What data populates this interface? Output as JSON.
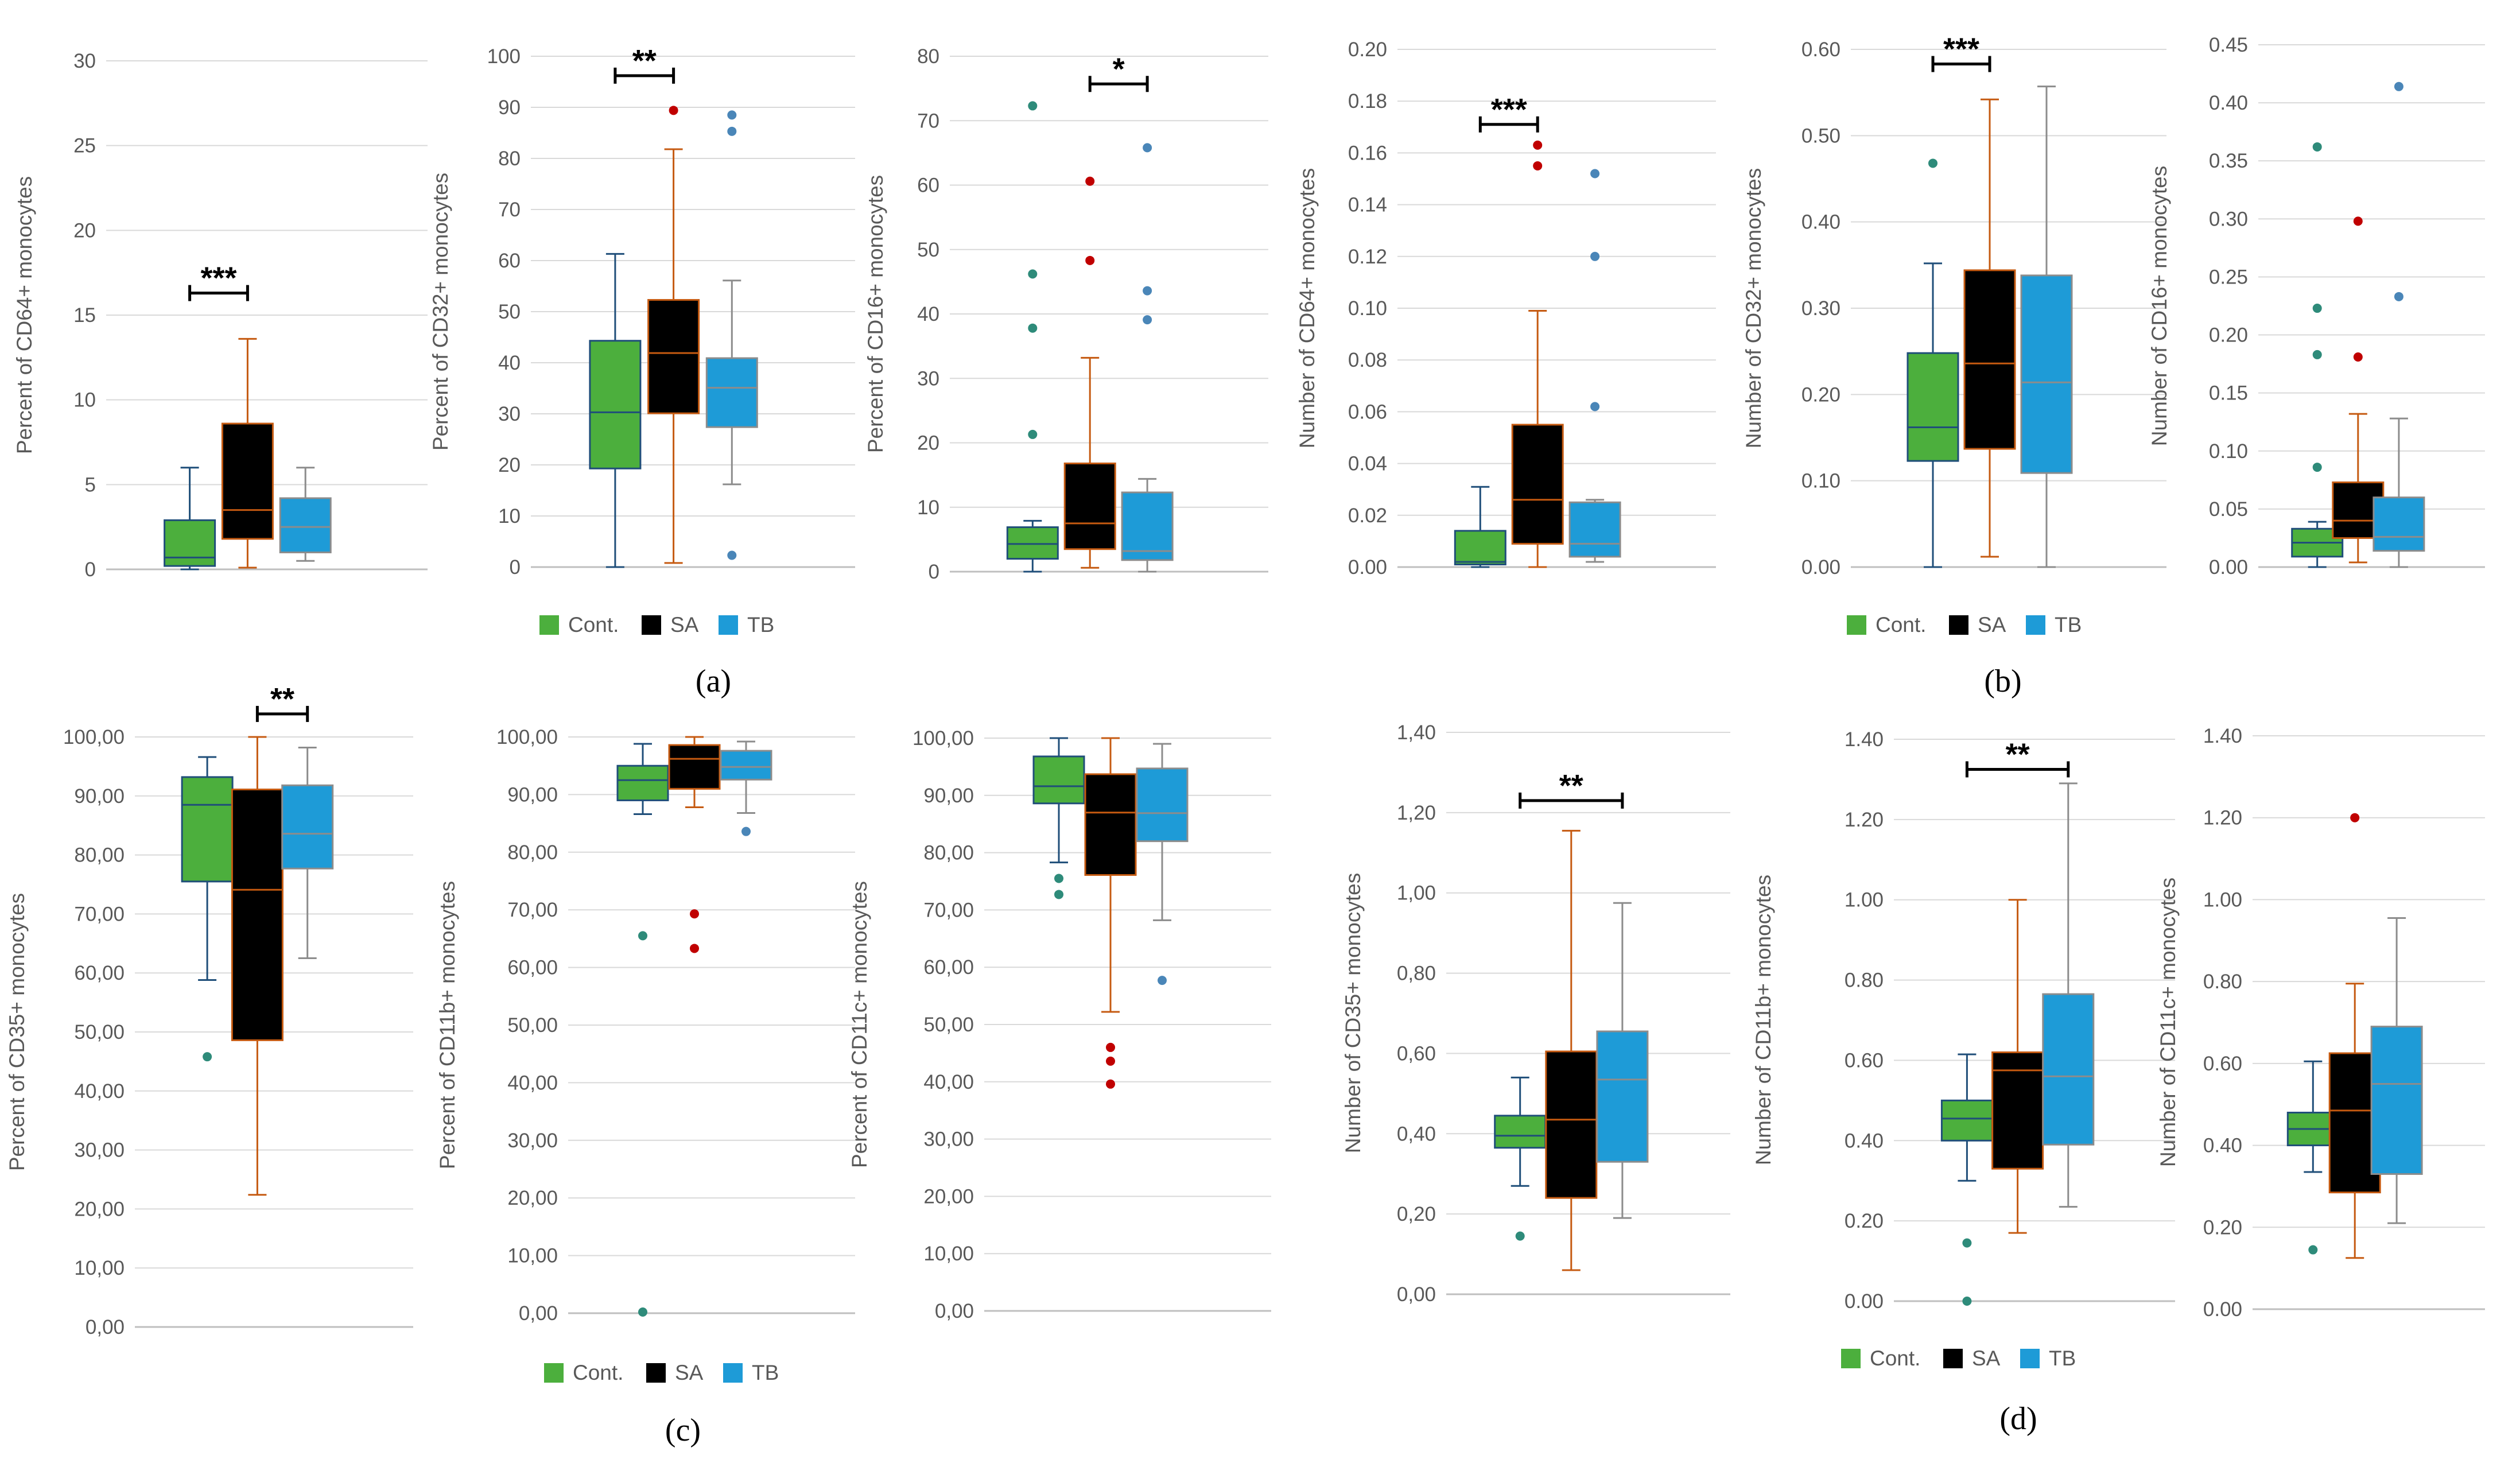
{
  "chart_data": [
    {
      "id": "a1",
      "panel": "a",
      "type": "box",
      "ylabel": "Percent of CD64+ monocytes",
      "ylim": [
        0,
        30
      ],
      "yticks": [
        0,
        5,
        10,
        15,
        20,
        25,
        30
      ],
      "ytick_labels": [
        "0",
        "5",
        "10",
        "15",
        "20",
        "25",
        "30"
      ],
      "boxes": [
        {
          "group": "Cont.",
          "min": 0,
          "q1": 0.2,
          "median": 0.7,
          "q3": 2.9,
          "max": 6,
          "outliers": []
        },
        {
          "group": "SA",
          "min": 0.1,
          "q1": 1.8,
          "median": 3.5,
          "q3": 8.6,
          "max": 13.6,
          "outliers": []
        },
        {
          "group": "TB",
          "min": 0.5,
          "q1": 1.0,
          "median": 2.5,
          "q3": 4.2,
          "max": 6,
          "outliers": []
        }
      ],
      "significance": {
        "label": "***",
        "from": 0,
        "to": 1,
        "y": 16.3
      }
    },
    {
      "id": "a2",
      "panel": "a",
      "type": "box",
      "ylabel": "Percent of CD32+ monocytes",
      "ylim": [
        0,
        100
      ],
      "yticks": [
        0,
        10,
        20,
        30,
        40,
        50,
        60,
        70,
        80,
        90,
        100
      ],
      "ytick_labels": [
        "0",
        "10",
        "20",
        "30",
        "40",
        "50",
        "60",
        "70",
        "80",
        "90",
        "100"
      ],
      "boxes": [
        {
          "group": "Cont.",
          "min": 0,
          "q1": 19.3,
          "median": 30.3,
          "q3": 44.3,
          "max": 61.3,
          "outliers": []
        },
        {
          "group": "SA",
          "min": 0.8,
          "q1": 30.1,
          "median": 41.9,
          "q3": 52.3,
          "max": 81.8,
          "outliers": [
            89.4
          ]
        },
        {
          "group": "TB",
          "min": 16.2,
          "q1": 27.4,
          "median": 35.1,
          "q3": 40.9,
          "max": 56.1,
          "outliers": [
            88.5,
            85.3,
            2.3
          ]
        }
      ],
      "significance": {
        "label": "**",
        "from": 0,
        "to": 1,
        "y": 96.2
      }
    },
    {
      "id": "a3",
      "panel": "a",
      "type": "box",
      "ylabel": "Percent of CD16+ monocytes",
      "ylim": [
        0,
        80
      ],
      "yticks": [
        0,
        10,
        20,
        30,
        40,
        50,
        60,
        70,
        80
      ],
      "ytick_labels": [
        "0",
        "10",
        "20",
        "30",
        "40",
        "50",
        "60",
        "70",
        "80"
      ],
      "boxes": [
        {
          "group": "Cont.",
          "min": 0,
          "q1": 2.0,
          "median": 4.3,
          "q3": 6.9,
          "max": 7.9,
          "outliers": [
            72.3,
            46.2,
            37.8,
            21.3
          ]
        },
        {
          "group": "SA",
          "min": 0.6,
          "q1": 3.5,
          "median": 7.5,
          "q3": 16.8,
          "max": 33.2,
          "outliers": [
            60.6,
            48.3
          ]
        },
        {
          "group": "TB",
          "min": 0,
          "q1": 1.8,
          "median": 3.2,
          "q3": 12.3,
          "max": 14.4,
          "outliers": [
            65.8,
            43.6,
            39.1
          ]
        }
      ],
      "significance": {
        "label": "*",
        "from": 1,
        "to": 2,
        "y": 75.7
      }
    },
    {
      "id": "b1",
      "panel": "b",
      "type": "box",
      "ylabel": "Number of CD64+ monocytes",
      "ylim": [
        0,
        0.2
      ],
      "yticks": [
        0,
        0.02,
        0.04,
        0.06,
        0.08,
        0.1,
        0.12,
        0.14,
        0.16,
        0.18,
        0.2
      ],
      "ytick_labels": [
        "0.00",
        "0.02",
        "0.04",
        "0.06",
        "0.08",
        "0.10",
        "0.12",
        "0.14",
        "0.16",
        "0.18",
        "0.20"
      ],
      "boxes": [
        {
          "group": "Cont.",
          "min": 0,
          "q1": 0.001,
          "median": 0.002,
          "q3": 0.014,
          "max": 0.031,
          "outliers": []
        },
        {
          "group": "SA",
          "min": 0,
          "q1": 0.009,
          "median": 0.026,
          "q3": 0.055,
          "max": 0.099,
          "outliers": [
            0.163,
            0.155
          ]
        },
        {
          "group": "TB",
          "min": 0.002,
          "q1": 0.004,
          "median": 0.009,
          "q3": 0.025,
          "max": 0.026,
          "outliers": [
            0.152,
            0.12,
            0.062
          ]
        }
      ],
      "significance": {
        "label": "***",
        "from": 0,
        "to": 1,
        "y": 0.171
      }
    },
    {
      "id": "b2",
      "panel": "b",
      "type": "box",
      "ylabel": "Number of CD32+ monocytes",
      "ylim": [
        0,
        0.6
      ],
      "yticks": [
        0,
        0.1,
        0.2,
        0.3,
        0.4,
        0.5,
        0.6
      ],
      "ytick_labels": [
        "0.00",
        "0.10",
        "0.20",
        "0.30",
        "0.40",
        "0.50",
        "0.60"
      ],
      "boxes": [
        {
          "group": "Cont.",
          "min": 0,
          "q1": 0.123,
          "median": 0.162,
          "q3": 0.248,
          "max": 0.352,
          "outliers": [
            0.468
          ]
        },
        {
          "group": "SA",
          "min": 0.012,
          "q1": 0.137,
          "median": 0.236,
          "q3": 0.344,
          "max": 0.542,
          "outliers": []
        },
        {
          "group": "TB",
          "min": 0,
          "q1": 0.109,
          "median": 0.214,
          "q3": 0.338,
          "max": 0.557,
          "outliers": []
        }
      ],
      "significance": {
        "label": "***",
        "from": 0,
        "to": 1,
        "y": 0.583
      }
    },
    {
      "id": "b3",
      "panel": "b",
      "type": "box",
      "ylabel": "Number of CD16+ monocytes",
      "ylim": [
        0,
        0.45
      ],
      "yticks": [
        0,
        0.05,
        0.1,
        0.15,
        0.2,
        0.25,
        0.3,
        0.35,
        0.4,
        0.45
      ],
      "ytick_labels": [
        "0.00",
        "0.05",
        "0.10",
        "0.15",
        "0.20",
        "0.25",
        "0.30",
        "0.35",
        "0.40",
        "0.45"
      ],
      "boxes": [
        {
          "group": "Cont.",
          "min": 0,
          "q1": 0.009,
          "median": 0.021,
          "q3": 0.033,
          "max": 0.039,
          "outliers": [
            0.362,
            0.223,
            0.183,
            0.086
          ]
        },
        {
          "group": "SA",
          "min": 0.004,
          "q1": 0.025,
          "median": 0.04,
          "q3": 0.073,
          "max": 0.132,
          "outliers": [
            0.298,
            0.181
          ]
        },
        {
          "group": "TB",
          "min": 0,
          "q1": 0.014,
          "median": 0.026,
          "q3": 0.06,
          "max": 0.128,
          "outliers": [
            0.414,
            0.233
          ]
        }
      ],
      "significance": null
    },
    {
      "id": "c1",
      "panel": "c",
      "type": "box",
      "ylabel": "Percent of CD35+ monocytes",
      "ylim": [
        0,
        100
      ],
      "yticks": [
        0,
        10,
        20,
        30,
        40,
        50,
        60,
        70,
        80,
        90,
        100
      ],
      "ytick_labels": [
        "0,00",
        "10,00",
        "20,00",
        "30,00",
        "40,00",
        "50,00",
        "60,00",
        "70,00",
        "80,00",
        "90,00",
        "100,00"
      ],
      "boxes": [
        {
          "group": "Cont.",
          "min": 58.8,
          "q1": 75.5,
          "median": 88.5,
          "q3": 93.2,
          "max": 96.6,
          "outliers": [
            45.8
          ]
        },
        {
          "group": "SA",
          "min": 22.4,
          "q1": 48.6,
          "median": 74.1,
          "q3": 91.1,
          "max": 100,
          "outliers": []
        },
        {
          "group": "TB",
          "min": 62.5,
          "q1": 77.7,
          "median": 83.6,
          "q3": 91.8,
          "max": 98.2,
          "outliers": []
        }
      ],
      "significance": {
        "label": "**",
        "from": 1,
        "to": 2,
        "y": 103.9
      }
    },
    {
      "id": "c2",
      "panel": "c",
      "type": "box",
      "ylabel": "Percent of CD11b+ monocytes",
      "ylim": [
        0,
        100
      ],
      "yticks": [
        0,
        10,
        20,
        30,
        40,
        50,
        60,
        70,
        80,
        90,
        100
      ],
      "ytick_labels": [
        "0,00",
        "10,00",
        "20,00",
        "30,00",
        "40,00",
        "50,00",
        "60,00",
        "70,00",
        "80,00",
        "90,00",
        "100,00"
      ],
      "boxes": [
        {
          "group": "Cont.",
          "min": 86.6,
          "q1": 89.0,
          "median": 92.5,
          "q3": 95.0,
          "max": 98.8,
          "outliers": [
            65.5,
            0.2
          ]
        },
        {
          "group": "SA",
          "min": 87.8,
          "q1": 91.0,
          "median": 96.2,
          "q3": 98.6,
          "max": 100,
          "outliers": [
            69.3,
            63.3
          ]
        },
        {
          "group": "TB",
          "min": 86.8,
          "q1": 92.6,
          "median": 94.8,
          "q3": 97.6,
          "max": 99.2,
          "outliers": [
            83.6
          ]
        }
      ],
      "significance": null
    },
    {
      "id": "c3",
      "panel": "c",
      "type": "box",
      "ylabel": "Percent of CD11c+ monocytes",
      "ylim": [
        0,
        100
      ],
      "yticks": [
        0,
        10,
        20,
        30,
        40,
        50,
        60,
        70,
        80,
        90,
        100
      ],
      "ytick_labels": [
        "0,00",
        "10,00",
        "20,00",
        "30,00",
        "40,00",
        "50,00",
        "60,00",
        "70,00",
        "80,00",
        "90,00",
        "100,00"
      ],
      "boxes": [
        {
          "group": "Cont.",
          "min": 78.3,
          "q1": 88.6,
          "median": 91.6,
          "q3": 96.8,
          "max": 100,
          "outliers": [
            75.5,
            72.7
          ]
        },
        {
          "group": "SA",
          "min": 52.2,
          "q1": 76.1,
          "median": 87.0,
          "q3": 93.7,
          "max": 100,
          "outliers": [
            46.0,
            43.6,
            39.6
          ]
        },
        {
          "group": "TB",
          "min": 68.2,
          "q1": 82.0,
          "median": 86.9,
          "q3": 94.7,
          "max": 99.0,
          "outliers": [
            57.7
          ]
        }
      ],
      "significance": null
    },
    {
      "id": "d1",
      "panel": "d",
      "type": "box",
      "ylabel": "Number of CD35+ monocytes",
      "ylim": [
        0,
        1.4
      ],
      "yticks": [
        0,
        0.2,
        0.4,
        0.6,
        0.8,
        1,
        1.2,
        1.4
      ],
      "ytick_labels": [
        "0,00",
        "0,20",
        "0,40",
        "0,60",
        "0,80",
        "1,00",
        "1,20",
        "1,40"
      ],
      "boxes": [
        {
          "group": "Cont.",
          "min": 0.27,
          "q1": 0.365,
          "median": 0.395,
          "q3": 0.445,
          "max": 0.54,
          "outliers": [
            0.145
          ]
        },
        {
          "group": "SA",
          "min": 0.06,
          "q1": 0.24,
          "median": 0.435,
          "q3": 0.605,
          "max": 1.155,
          "outliers": []
        },
        {
          "group": "TB",
          "min": 0.19,
          "q1": 0.33,
          "median": 0.535,
          "q3": 0.655,
          "max": 0.975,
          "outliers": []
        }
      ],
      "significance": {
        "label": "**",
        "from": 0,
        "to": 2,
        "y": 1.23
      }
    },
    {
      "id": "d2",
      "panel": "d",
      "type": "box",
      "ylabel": "Number of CD11b+ monocytes",
      "ylim": [
        0,
        1.4
      ],
      "yticks": [
        0,
        0.2,
        0.4,
        0.6,
        0.8,
        1,
        1.2,
        1.4
      ],
      "ytick_labels": [
        "0.00",
        "0.20",
        "0.40",
        "0.60",
        "0.80",
        "1.00",
        "1.20",
        "1.40"
      ],
      "boxes": [
        {
          "group": "Cont.",
          "min": 0.3,
          "q1": 0.4,
          "median": 0.455,
          "q3": 0.5,
          "max": 0.615,
          "outliers": [
            0.145,
            0.0
          ]
        },
        {
          "group": "SA",
          "min": 0.17,
          "q1": 0.33,
          "median": 0.575,
          "q3": 0.62,
          "max": 1.0,
          "outliers": []
        },
        {
          "group": "TB",
          "min": 0.235,
          "q1": 0.39,
          "median": 0.56,
          "q3": 0.765,
          "max": 1.29,
          "outliers": []
        }
      ],
      "significance": {
        "label": "**",
        "from": 0,
        "to": 2,
        "y": 1.325
      }
    },
    {
      "id": "d3",
      "panel": "d",
      "type": "box",
      "ylabel": "Number of CD11c+ monocytes",
      "ylim": [
        0,
        1.4
      ],
      "yticks": [
        0,
        0.2,
        0.4,
        0.6,
        0.8,
        1,
        1.2,
        1.4
      ],
      "ytick_labels": [
        "0.00",
        "0.20",
        "0.40",
        "0.60",
        "0.80",
        "1.00",
        "1.20",
        "1.40"
      ],
      "boxes": [
        {
          "group": "Cont.",
          "min": 0.335,
          "q1": 0.4,
          "median": 0.44,
          "q3": 0.48,
          "max": 0.605,
          "outliers": [
            0.145
          ]
        },
        {
          "group": "SA",
          "min": 0.125,
          "q1": 0.285,
          "median": 0.485,
          "q3": 0.625,
          "max": 0.795,
          "outliers": [
            1.2
          ]
        },
        {
          "group": "TB",
          "min": 0.21,
          "q1": 0.33,
          "median": 0.55,
          "q3": 0.69,
          "max": 0.955,
          "outliers": []
        }
      ],
      "significance": null
    }
  ],
  "legend": {
    "items": [
      {
        "label": "Cont.",
        "fill": "#4CAF3D",
        "edge": "#1F4E79"
      },
      {
        "label": "SA",
        "fill": "#000000",
        "edge": "#C55A11"
      },
      {
        "label": "TB",
        "fill": "#1E9BD7",
        "edge": "#8C8C8C"
      }
    ]
  },
  "panel_labels": [
    "(a)",
    "(b)",
    "(c)",
    "(d)"
  ],
  "colors": {
    "cont_fill": "#4CAF3D",
    "cont_line": "#1F4E79",
    "sa_fill": "#000000",
    "sa_line": "#C55A11",
    "tb_fill": "#1E9BD7",
    "tb_line": "#8C8C8C",
    "cont_outlier": "#2E8B7A",
    "sa_outlier": "#C00000",
    "tb_outlier": "#4A86B8",
    "grid": "#D9D9D9",
    "axis": "#BFBFBF",
    "text": "#595959"
  }
}
